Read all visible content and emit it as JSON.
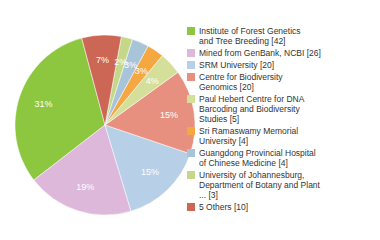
{
  "chart_data": {
    "type": "pie",
    "categories": [
      "Institute of Forest Genetics\nand Tree Breeding [42]",
      "Mined from GenBank, NCBI [26]",
      "SRM University [20]",
      "Centre for Biodiversity\nGenomics [20]",
      "Paul Hebert Centre for DNA\nBarcoding and Biodiversity\nStudies [5]",
      "Sri Ramaswamy Memorial\nUniversity [4]",
      "Guangdong Provincial Hospital\nof Chinese Medicine [4]",
      "University of Johannesburg,\nDepartment of Botany and Plant\n... [3]",
      "5 Others [10]"
    ],
    "values": [
      31,
      19,
      15,
      15,
      4,
      3,
      3,
      2,
      7
    ],
    "value_labels": [
      "31%",
      "19%",
      "15%",
      "15%",
      "4%",
      "3%",
      "3%",
      "2%",
      "7%"
    ],
    "colors": [
      "#8dc63f",
      "#ddb8da",
      "#b8cfe8",
      "#e89080",
      "#d4df9a",
      "#f5a742",
      "#a8c4d8",
      "#c5d88a",
      "#cc6655"
    ],
    "data_labels": true,
    "legend": "right"
  }
}
